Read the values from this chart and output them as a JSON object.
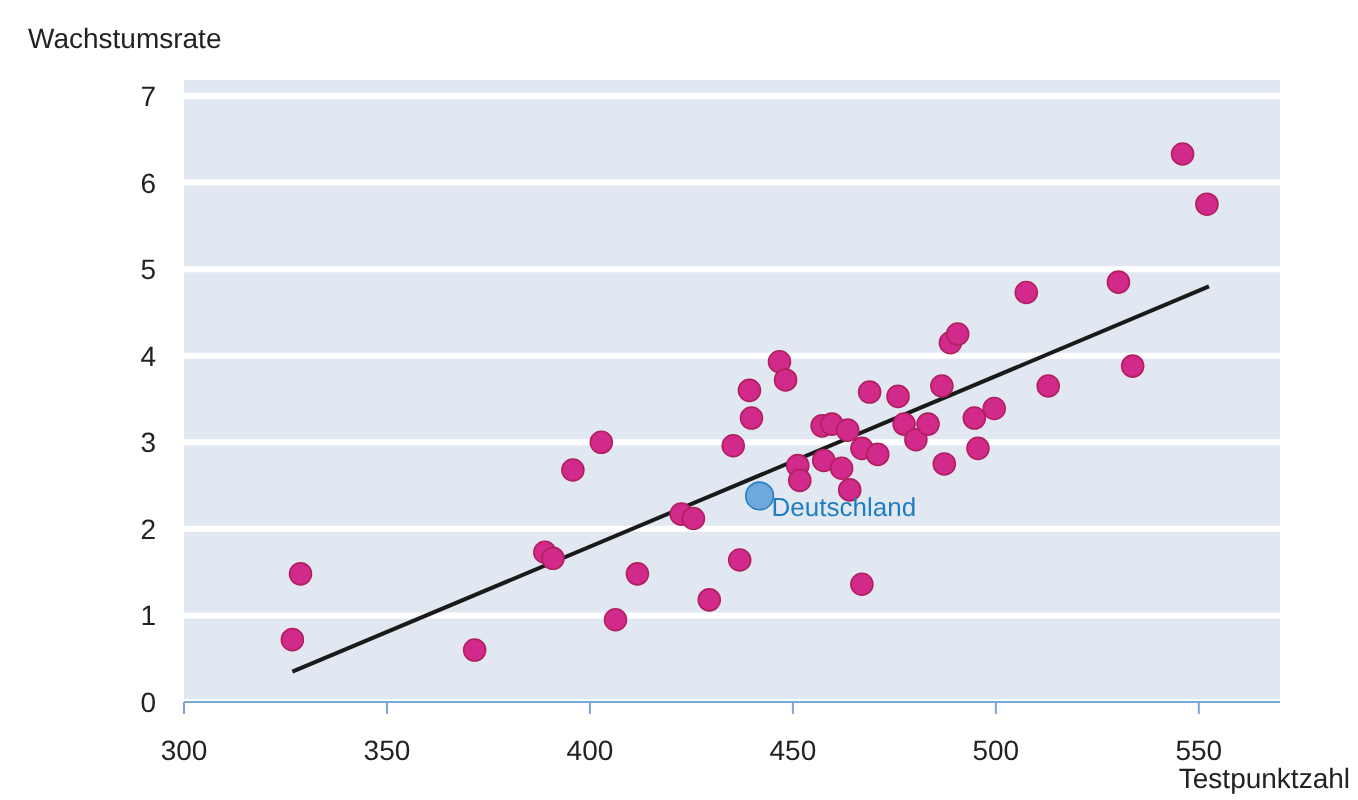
{
  "chart_data": {
    "type": "scatter",
    "xlabel": "Testpunktzahl",
    "ylabel": "Wachstumsrate",
    "xlim": [
      300,
      570
    ],
    "xticks": [
      300,
      350,
      400,
      450,
      500,
      550
    ],
    "ylim": [
      0,
      7
    ],
    "yticks": [
      0,
      1,
      2,
      3,
      4,
      5,
      6,
      7
    ],
    "grid": "y",
    "marker": "circle",
    "series": [
      {
        "type": "line",
        "color": "#1a1a1a",
        "x": [
          326.7,
          552.5
        ],
        "values": [
          0.35,
          4.8
        ],
        "marker": "none"
      },
      {
        "color": "#d22a8a",
        "x": [
          326.7,
          328.7,
          371.6,
          388.9,
          390.9,
          395.8,
          402.8,
          406.3,
          411.7,
          422.5,
          425.5,
          429.4,
          435.3,
          436.9,
          439.3,
          439.8,
          446.7,
          448.2,
          451.2,
          451.7,
          457.2,
          459.6,
          457.6,
          462.0,
          464.0,
          467.0,
          467.0,
          463.5,
          468.9,
          470.9,
          475.9,
          477.4,
          480.3,
          483.3,
          486.7,
          487.3,
          488.8,
          490.6,
          494.7,
          495.6,
          499.6,
          507.5,
          512.9,
          530.2,
          533.7,
          546.0,
          552.0
        ],
        "values": [
          0.72,
          1.48,
          0.6,
          1.73,
          1.66,
          2.68,
          3.0,
          0.95,
          1.48,
          2.17,
          2.12,
          1.18,
          2.96,
          1.64,
          3.6,
          3.28,
          3.93,
          3.72,
          2.73,
          2.56,
          3.19,
          3.21,
          2.79,
          2.7,
          2.45,
          1.36,
          2.93,
          3.14,
          3.58,
          2.86,
          3.53,
          3.21,
          3.03,
          3.21,
          3.65,
          2.75,
          4.15,
          4.25,
          3.28,
          2.93,
          3.39,
          4.73,
          3.65,
          4.85,
          3.88,
          6.33,
          5.75
        ]
      },
      {
        "name": "Deutschland",
        "color": "#6fa8dc",
        "x": [
          441.8
        ],
        "values": [
          2.38
        ]
      }
    ]
  }
}
